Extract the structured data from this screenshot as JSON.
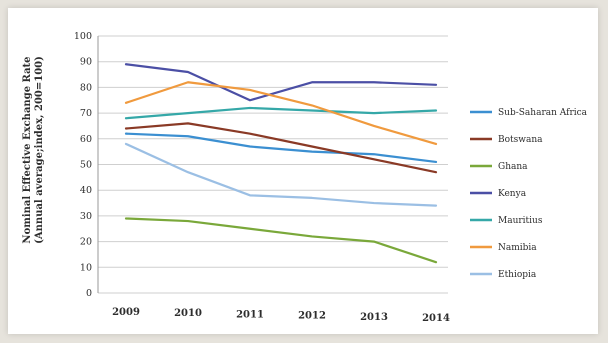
{
  "chart_data": {
    "type": "line",
    "title": "",
    "xlabel": "",
    "ylabel_lines": [
      "Nominal Effective Exchange Rate",
      "(Annual average;index, 200=100)"
    ],
    "x": [
      "2009",
      "2010",
      "2011",
      "2012",
      "2013",
      "2014"
    ],
    "ylim": [
      0,
      100
    ],
    "yticks": [
      0,
      10,
      20,
      30,
      40,
      50,
      60,
      70,
      80,
      90,
      100
    ],
    "grid": true,
    "legend_position": "right",
    "series": [
      {
        "name": "Sub-Saharan Africa",
        "color": "#3b8fd1",
        "values": [
          62,
          61,
          57,
          55,
          54,
          51
        ]
      },
      {
        "name": "Botswana",
        "color": "#8a3a26",
        "values": [
          64,
          66,
          62,
          57,
          52,
          47
        ]
      },
      {
        "name": "Ghana",
        "color": "#7aa83a",
        "values": [
          29,
          28,
          25,
          22,
          20,
          12
        ]
      },
      {
        "name": "Kenya",
        "color": "#4b4fa5",
        "values": [
          89,
          86,
          75,
          82,
          82,
          81
        ]
      },
      {
        "name": "Mauritius",
        "color": "#35a8a8",
        "values": [
          68,
          70,
          72,
          71,
          70,
          71
        ]
      },
      {
        "name": "Namibia",
        "color": "#f09a3e",
        "values": [
          74,
          82,
          79,
          73,
          65,
          58
        ]
      },
      {
        "name": "Ethiopia",
        "color": "#9bbfe4",
        "values": [
          58,
          47,
          38,
          37,
          35,
          34
        ]
      }
    ]
  }
}
